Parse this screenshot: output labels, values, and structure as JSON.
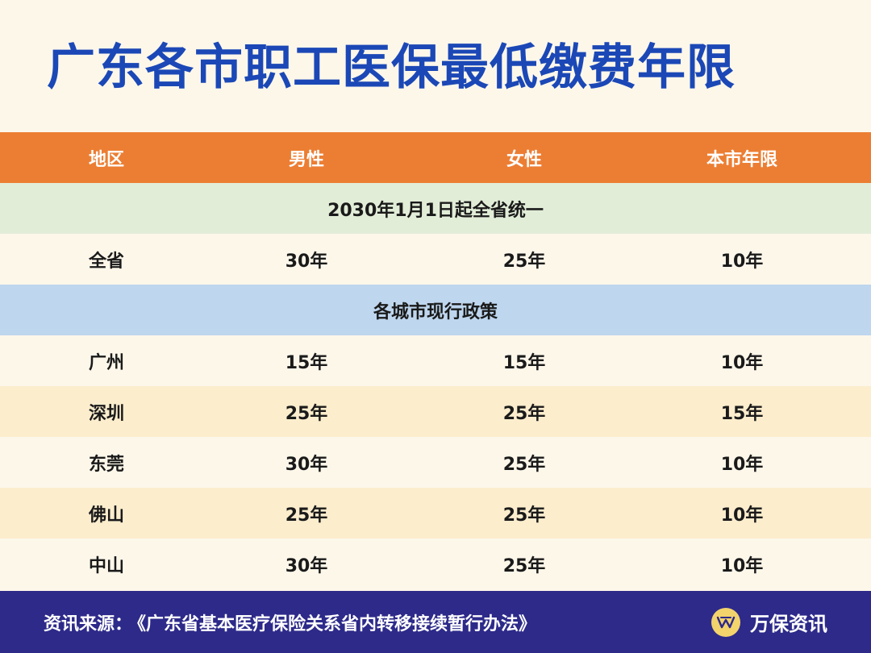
{
  "title": "广东各市职工医保最低缴费年限",
  "table": {
    "headers": [
      "地区",
      "男性",
      "女性",
      "本市年限"
    ],
    "province_band": "2030年1月1日起全省统一",
    "province_row": {
      "region": "全省",
      "male": "30年",
      "female": "25年",
      "local": "10年"
    },
    "city_band": "各城市现行政策",
    "city_rows": [
      {
        "region": "广州",
        "male": "15年",
        "female": "15年",
        "local": "10年"
      },
      {
        "region": "深圳",
        "male": "25年",
        "female": "25年",
        "local": "15年"
      },
      {
        "region": "东莞",
        "male": "30年",
        "female": "25年",
        "local": "10年"
      },
      {
        "region": "佛山",
        "male": "25年",
        "female": "25年",
        "local": "10年"
      },
      {
        "region": "中山",
        "male": "30年",
        "female": "25年",
        "local": "10年"
      }
    ]
  },
  "footer": {
    "source_label": "资讯来源：",
    "source_text": "《广东省基本医疗保险关系省内转移接续暂行办法》",
    "brand_name": "万保资讯",
    "brand_icon": "wanbao-logo-icon"
  },
  "colors": {
    "title": "#1b48b6",
    "header_bg": "#ec7e33",
    "band_green": "#e2edd8",
    "band_blue": "#bed6ee",
    "row_light": "#fdf7ea",
    "row_dark": "#fcedcd",
    "footer_bg": "#2d2a8a",
    "brand_icon_bg": "#f3d36c"
  }
}
